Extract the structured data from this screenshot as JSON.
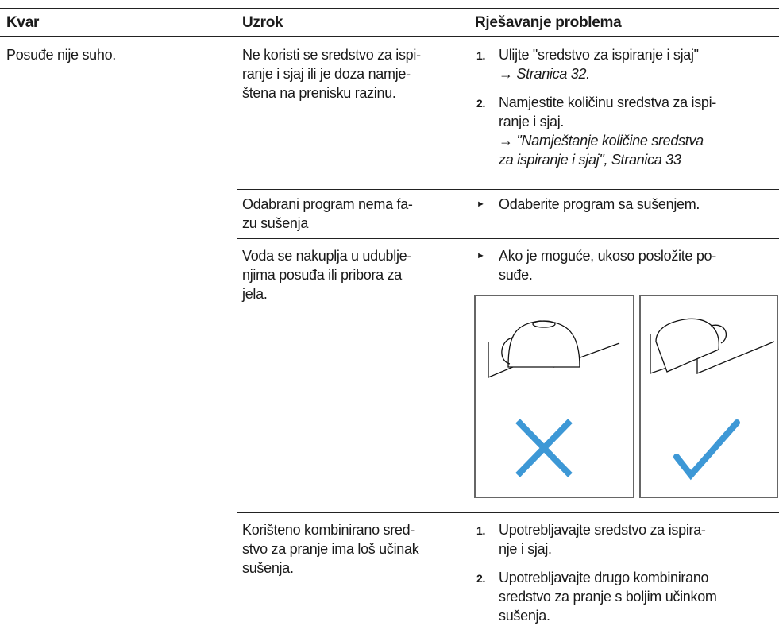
{
  "header": [
    "Kvar",
    "Uzrok",
    "Rješavanje problema"
  ],
  "rows": [
    {
      "fault": "Posuđe nije suho.",
      "causes": [
        {
          "cause": [
            "Ne koristi se sredstvo za ispi-",
            "ranje i sjaj ili je doza namje-",
            "štena na prenisku razinu."
          ],
          "steps": [
            {
              "marker": "1.",
              "lines": [
                "Ulijte \"sredstvo za ispiranje i sjaj\""
              ],
              "refs": [
                "→ Stranica 32."
              ]
            },
            {
              "marker": "2.",
              "lines": [
                "Namjestite količinu sredstva za ispi-",
                "ranje i sjaj."
              ],
              "refs": [
                "→ \"Namještanje količine sredstva",
                "za ispiranje i sjaj\", Stranica 33"
              ]
            }
          ]
        },
        {
          "cause": [
            "Odabrani program nema fa-",
            "zu sušenja"
          ],
          "steps": [
            {
              "marker": "►",
              "lines": [
                "Odaberite program sa sušenjem."
              ]
            }
          ]
        },
        {
          "cause": [
            "Voda se nakuplja u udublje-",
            "njima posuđa ili pribora za",
            "jela."
          ],
          "steps": [
            {
              "marker": "►",
              "lines": [
                "Ako je moguće, ukoso posložite po-",
                "suđe."
              ]
            }
          ]
        },
        {
          "cause": [
            "Korišteno kombinirano sred-",
            "stvo za pranje ima loš učinak",
            "sušenja."
          ],
          "steps": [
            {
              "marker": "1.",
              "lines": [
                "Upotrebljavajte sredstvo za ispira-",
                "nje i sjaj."
              ]
            },
            {
              "marker": "2.",
              "lines": [
                "Upotrebljavajte drugo kombinirano",
                "sredstvo za pranje s boljim učinkom",
                "sušenja."
              ]
            }
          ]
        }
      ]
    }
  ]
}
